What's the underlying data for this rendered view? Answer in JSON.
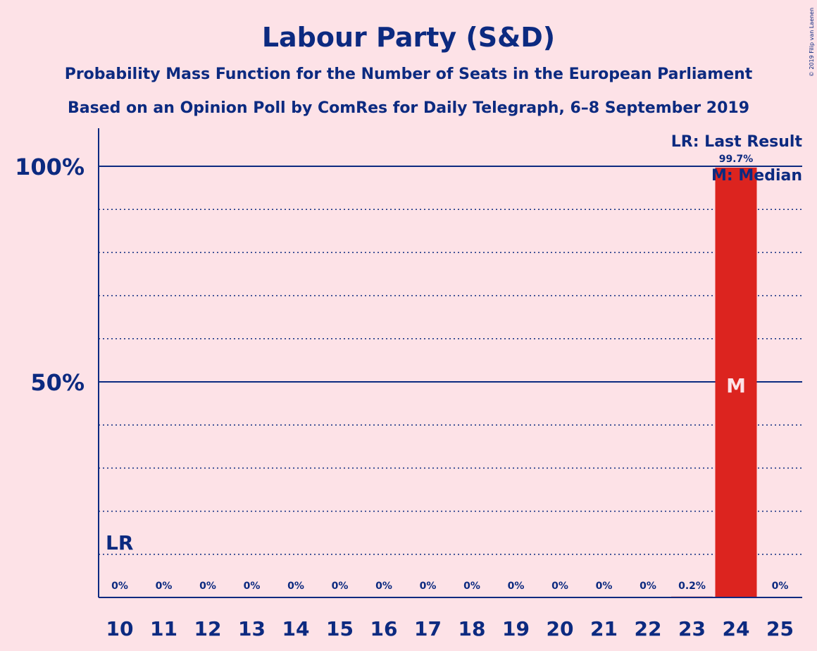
{
  "chart_data": {
    "type": "bar",
    "title": "Labour Party (S&D)",
    "subtitle_lines": [
      "Probability Mass Function for the Number of Seats in the European Parliament",
      "Based on an Opinion Poll by ComRes for Daily Telegraph, 6–8 September 2019"
    ],
    "categories": [
      "10",
      "11",
      "12",
      "13",
      "14",
      "15",
      "16",
      "17",
      "18",
      "19",
      "20",
      "21",
      "22",
      "23",
      "24",
      "25"
    ],
    "values": [
      0,
      0,
      0,
      0,
      0,
      0,
      0,
      0,
      0,
      0,
      0,
      0,
      0,
      0.2,
      99.7,
      0
    ],
    "data_labels": [
      "0%",
      "0%",
      "0%",
      "0%",
      "0%",
      "0%",
      "0%",
      "0%",
      "0%",
      "0%",
      "0%",
      "0%",
      "0%",
      "0.2%",
      "99.7%",
      "0%"
    ],
    "ylim": [
      0,
      100
    ],
    "y_ticks": [
      {
        "value": 50,
        "label": "50%"
      },
      {
        "value": 100,
        "label": "100%"
      }
    ],
    "minor_gridlines": [
      10,
      20,
      30,
      40,
      60,
      70,
      80,
      90
    ],
    "last_result": {
      "category": "10",
      "label": "LR"
    },
    "median": {
      "category": "24",
      "label": "M"
    },
    "legend": [
      "LR: Last Result",
      "M: Median"
    ],
    "legend_position": "top-right",
    "copyright": "© 2019 Filip van Laenen",
    "colors": {
      "background": "#fde2e7",
      "bar": "#dc241f",
      "text": "#0c2a80",
      "marker_text": "#fde2e7"
    }
  }
}
